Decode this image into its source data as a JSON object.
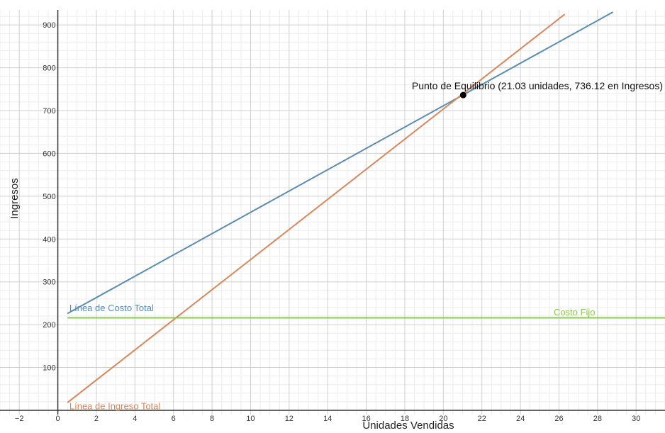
{
  "chart_data": {
    "type": "line",
    "xlabel": "Unidades Vendidas",
    "ylabel": "Ingresos",
    "xlim": [
      -3.0,
      31.5
    ],
    "ylim": [
      -10,
      935
    ],
    "grid": true,
    "x_ticks": [
      -2,
      0,
      2,
      4,
      6,
      8,
      10,
      12,
      14,
      16,
      18,
      20,
      22,
      24,
      26,
      28,
      30
    ],
    "y_ticks": [
      100,
      200,
      300,
      400,
      500,
      600,
      700,
      800,
      900
    ],
    "series": [
      {
        "name": "Línea de Costo Total",
        "color": "#5a8db0",
        "x": [
          0.5,
          28.8
        ],
        "y": [
          226,
          930
        ]
      },
      {
        "name": "Línea de Ingreso Total",
        "color": "#d9875a",
        "x": [
          0.5,
          26.3
        ],
        "y": [
          18,
          925
        ]
      },
      {
        "name": "Costo Fijo",
        "color": "#8cc84b",
        "x": [
          0.5,
          31.5
        ],
        "y": [
          216,
          216
        ]
      }
    ],
    "annotations": [
      {
        "text": "Punto de Equilibrio (21.03 unidades, 736.12 en Ingresos)",
        "x": 21.03,
        "y": 736.12
      }
    ]
  }
}
